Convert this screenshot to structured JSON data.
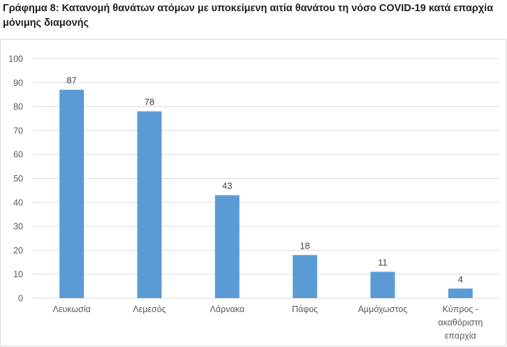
{
  "title": "Γράφημα 8: Κατανομή θανάτων ατόμων με υποκείμενη αιτία θανάτου τη νόσο COVID-19 κατά επαρχία μόνιμης διαμονής",
  "colors": {
    "bar": "#5b9bd5",
    "grid": "#d9d9d9",
    "axis": "#d9d9d9",
    "text": "#595959",
    "label": "#404040"
  },
  "chart_data": {
    "type": "bar",
    "categories": [
      [
        "Λευκωσία"
      ],
      [
        "Λεμεσός"
      ],
      [
        "Λάρνακα"
      ],
      [
        "Πάφος"
      ],
      [
        "Αμμόχωστος"
      ],
      [
        "Κύπρος -",
        "ακαθόριστη",
        "επαρχία"
      ]
    ],
    "values": [
      87,
      78,
      43,
      18,
      11,
      4
    ],
    "ylim": [
      0,
      100
    ],
    "yticks": [
      0,
      10,
      20,
      30,
      40,
      50,
      60,
      70,
      80,
      90,
      100
    ],
    "grid": true,
    "data_labels": true,
    "legend": "none",
    "xlabel": "",
    "ylabel": ""
  }
}
